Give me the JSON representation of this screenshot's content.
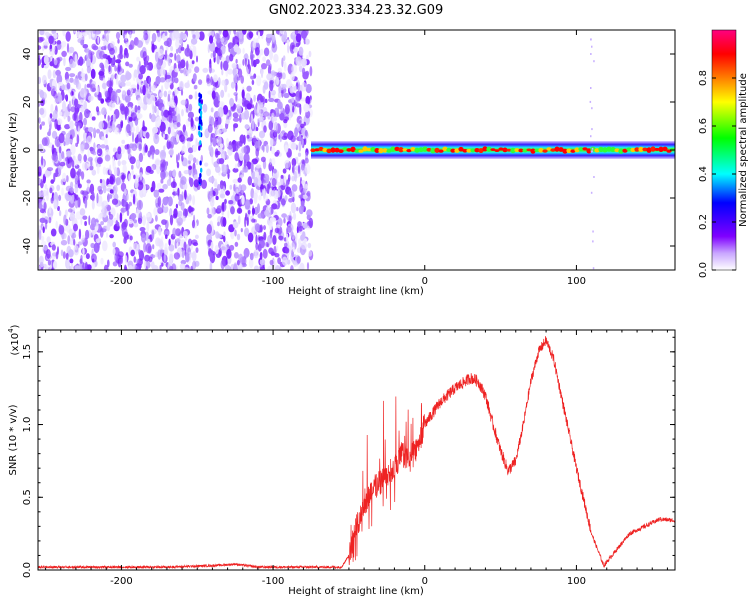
{
  "title": "GN02.2023.334.23.32.G09",
  "chart_data": [
    {
      "type": "heatmap",
      "xlabel": "Height of straight line (km)",
      "ylabel": "Frequency (Hz)",
      "xlim": [
        -255,
        165
      ],
      "ylim": [
        -50,
        50
      ],
      "xticks": [
        -200,
        -100,
        0,
        100
      ],
      "yticks": [
        -40,
        -20,
        0,
        20,
        40
      ],
      "xtick_labels": [
        "-200",
        "-100",
        "0",
        "100"
      ],
      "ytick_labels": [
        "-40",
        "-20",
        "0",
        "20",
        "40"
      ],
      "noise_region_x": [
        -255,
        -75
      ],
      "gap_x": [
        -150,
        -143
      ],
      "tone_frequency": 0,
      "colorbar": {
        "label": "Normalized spectral amplitude",
        "range": [
          0,
          1
        ],
        "ticks": [
          0.0,
          0.2,
          0.4,
          0.6,
          0.8
        ],
        "tick_labels": [
          "0.0",
          "0.2",
          "0.4",
          "0.6",
          "0.8"
        ],
        "colors": [
          "#ffffff",
          "#7f00ff",
          "#0000ff",
          "#00ffff",
          "#00ff00",
          "#ffff00",
          "#ff7f00",
          "#ff0000",
          "#ff0080"
        ]
      }
    },
    {
      "type": "line",
      "xlabel": "Height of straight line (km)",
      "ylabel": "SNR (10 * v/v)",
      "scale_label": "(x10",
      "scale_exp": "4",
      "scale_close": ")",
      "xlim": [
        -255,
        165
      ],
      "ylim": [
        0,
        1.65
      ],
      "xticks": [
        -200,
        -100,
        0,
        100
      ],
      "yticks": [
        0.0,
        0.5,
        1.0,
        1.5
      ],
      "xtick_labels": [
        "-200",
        "-100",
        "0",
        "100"
      ],
      "ytick_labels": [
        "0.0",
        "0.5",
        "1.0",
        "1.5"
      ],
      "color": "#ee2222",
      "x": [
        -255,
        -230,
        -200,
        -170,
        -140,
        -125,
        -110,
        -90,
        -70,
        -55,
        -50,
        -45,
        -40,
        -35,
        -30,
        -25,
        -20,
        -15,
        -10,
        -5,
        0,
        10,
        20,
        30,
        35,
        40,
        45,
        50,
        55,
        60,
        65,
        70,
        75,
        80,
        85,
        90,
        100,
        110,
        118,
        125,
        135,
        145,
        155,
        165
      ],
      "y": [
        0.02,
        0.02,
        0.02,
        0.02,
        0.03,
        0.04,
        0.02,
        0.02,
        0.02,
        0.02,
        0.1,
        0.3,
        0.45,
        0.55,
        0.6,
        0.65,
        0.7,
        0.8,
        0.75,
        0.85,
        1.0,
        1.15,
        1.25,
        1.32,
        1.3,
        1.2,
        1.0,
        0.82,
        0.68,
        0.75,
        1.0,
        1.3,
        1.5,
        1.58,
        1.45,
        1.2,
        0.7,
        0.25,
        0.03,
        0.12,
        0.25,
        0.3,
        0.35,
        0.34
      ]
    }
  ]
}
